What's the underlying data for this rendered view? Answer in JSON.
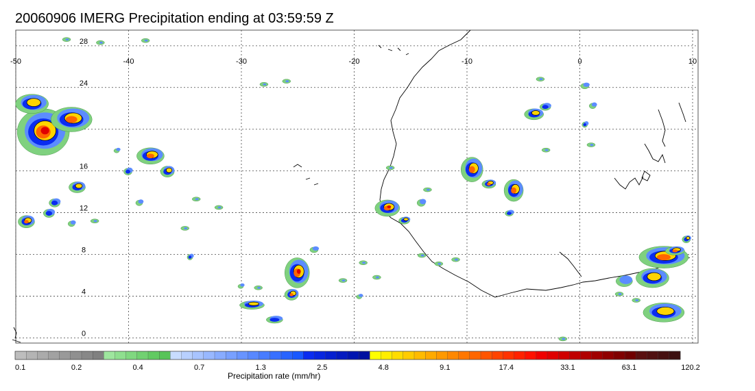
{
  "title": "20060906 IMERG Precipitation ending at 03:59:59 Z",
  "map": {
    "lon_labels": [
      "-50",
      "-40",
      "-30",
      "-20",
      "-10",
      "0",
      "10"
    ],
    "lon_values": [
      -50,
      -40,
      -30,
      -20,
      -10,
      0,
      10
    ],
    "lat_labels": [
      "28",
      "24",
      "20",
      "16",
      "12",
      "8",
      "4",
      "0"
    ],
    "lat_values": [
      28,
      24,
      20,
      16,
      12,
      8,
      4,
      0
    ],
    "lon_range": [
      -50,
      10
    ],
    "lat_range": [
      -0.5,
      29.5
    ]
  },
  "colorbar": {
    "tick_labels": [
      "0.1",
      "0.2",
      "0.4",
      "0.7",
      "1.3",
      "2.5",
      "4.8",
      "9.1",
      "17.4",
      "33.1",
      "63.1",
      "120.2"
    ],
    "unit_label": "Precipitation rate (mm/hr)",
    "colors": [
      "#bdbdbd",
      "#b4b4b4",
      "#ababab",
      "#a2a2a2",
      "#999999",
      "#909090",
      "#888888",
      "#808080",
      "#9ee69e",
      "#8fdf8f",
      "#80d880",
      "#71d171",
      "#62ca62",
      "#58c458",
      "#c8dcff",
      "#b8d0ff",
      "#a8c4ff",
      "#98b8ff",
      "#88acff",
      "#78a0ff",
      "#6894ff",
      "#5888ff",
      "#487cff",
      "#3870ff",
      "#2864ff",
      "#1858ff",
      "#0a2cf0",
      "#0826e0",
      "#0620d0",
      "#041ac0",
      "#0014b0",
      "#0010a0",
      "#ffff00",
      "#ffee00",
      "#ffdd00",
      "#ffcc00",
      "#ffbb00",
      "#ffaa00",
      "#ff9900",
      "#ff8800",
      "#ff7700",
      "#ff6600",
      "#ff5500",
      "#ff4400",
      "#ff3300",
      "#ff2200",
      "#ff1100",
      "#f00000",
      "#e00000",
      "#d00000",
      "#c00000",
      "#b00000",
      "#a00000",
      "#900000",
      "#800000",
      "#700000",
      "#5a1010",
      "#501010",
      "#461010",
      "#3c1010"
    ]
  },
  "precip_colors": {
    "light": "#7fd17f",
    "mid": "#5c8cff",
    "strong": "#0a2cf0",
    "heavy": "#ffd400",
    "very_heavy": "#ff6600",
    "extreme": "#e00000"
  }
}
